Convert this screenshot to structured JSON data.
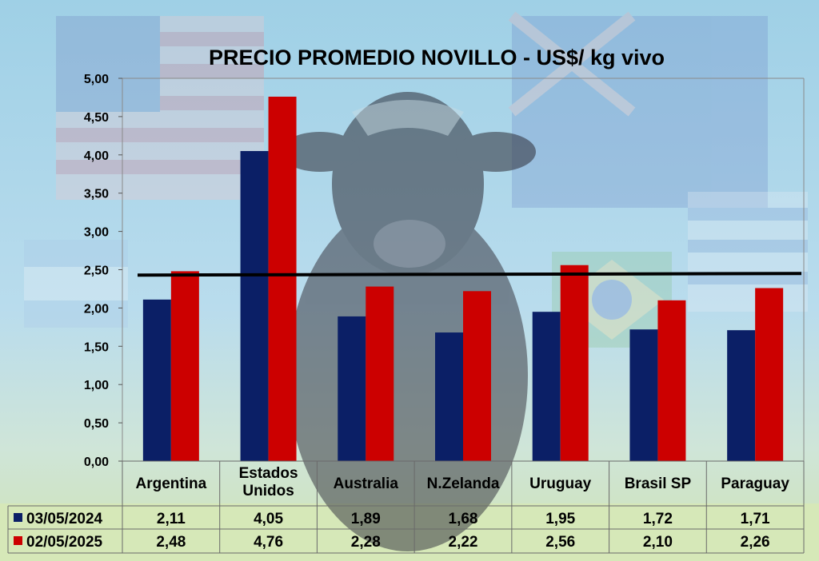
{
  "colors": {
    "series_2024": "#0b1f66",
    "series_2025": "#cc0000",
    "average_line": "#000000",
    "grid": "#000000"
  },
  "chart_data": {
    "type": "bar",
    "title": "PRECIO PROMEDIO NOVILLO  - US$/ kg vivo",
    "categories": [
      [
        "Argentina"
      ],
      [
        "Estados",
        "Unidos"
      ],
      [
        "Australia"
      ],
      [
        "N.Zelanda"
      ],
      [
        "Uruguay"
      ],
      [
        "Brasil SP"
      ],
      [
        "Paraguay"
      ]
    ],
    "series": [
      {
        "name": "03/05/2024",
        "values": [
          2.11,
          4.05,
          1.89,
          1.68,
          1.95,
          1.72,
          1.71
        ],
        "labels": [
          "2,11",
          "4,05",
          "1,89",
          "1,68",
          "1,95",
          "1,72",
          "1,71"
        ]
      },
      {
        "name": "02/05/2025",
        "values": [
          2.48,
          4.76,
          2.28,
          2.22,
          2.56,
          2.1,
          2.26
        ],
        "labels": [
          "2,48",
          "4,76",
          "2,28",
          "2,22",
          "2,56",
          "2,10",
          "2,26"
        ]
      }
    ],
    "average_line": [
      2.43,
      2.45
    ],
    "ylim": [
      0,
      5
    ],
    "yticks": [
      "0,00",
      "0,50",
      "1,00",
      "1,50",
      "2,00",
      "2,50",
      "3,00",
      "3,50",
      "4,00",
      "4,50",
      "5,00"
    ],
    "grid": false,
    "legend": "data-table"
  }
}
